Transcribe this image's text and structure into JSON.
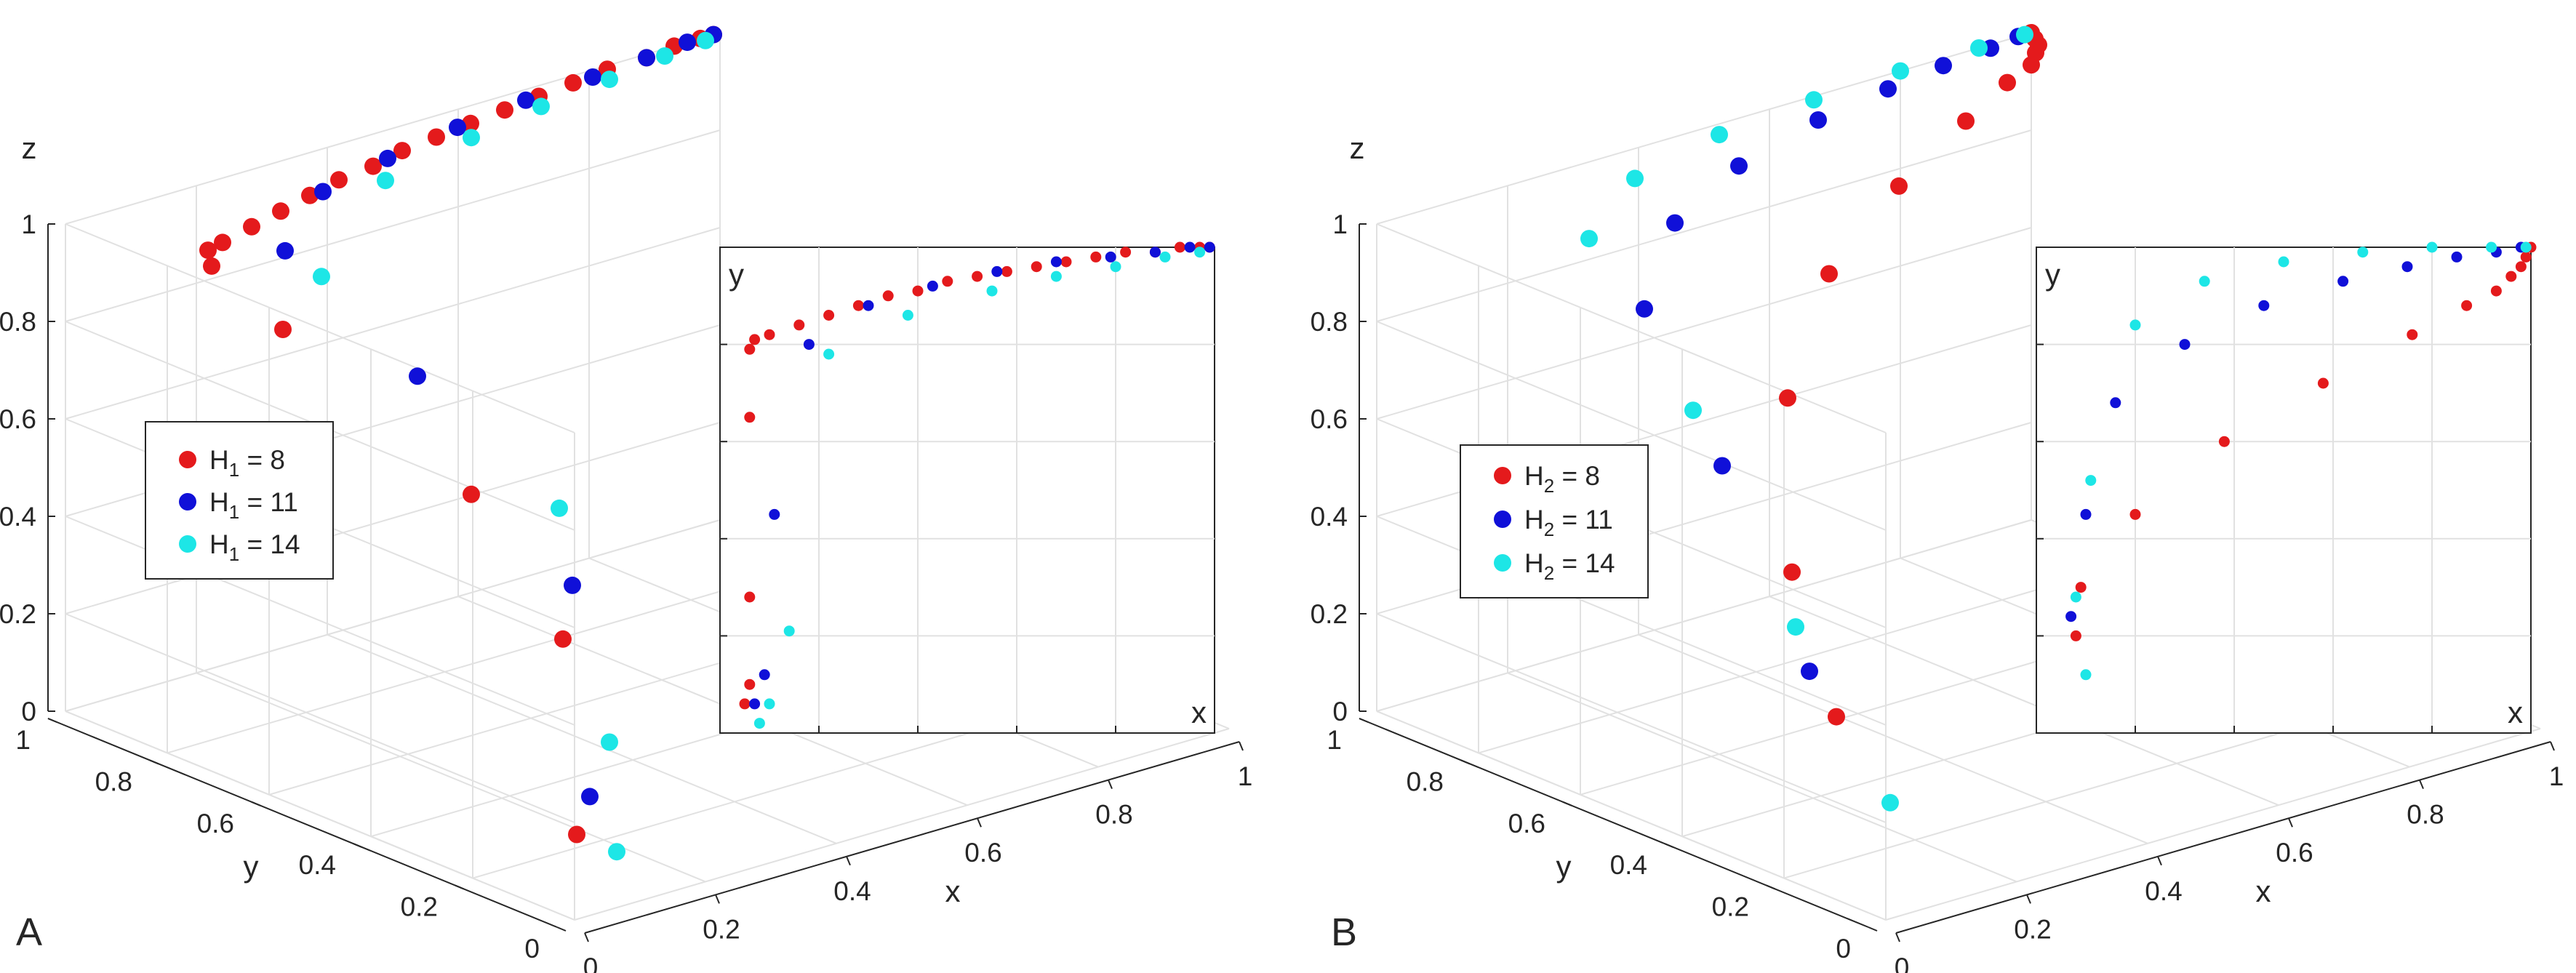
{
  "figure": {
    "colors": {
      "s1": "#e41a1c",
      "s2": "#1010d8",
      "s3": "#1de6e6",
      "grid": "#e1e1e1",
      "axis": "#262626"
    }
  },
  "chart_data": [
    {
      "type": "scatter",
      "panel_label": "A",
      "projection": "3d",
      "xlabel": "x",
      "ylabel": "y",
      "zlabel": "z",
      "xlim": [
        0,
        1
      ],
      "ylim": [
        0,
        1
      ],
      "zlim": [
        0,
        1
      ],
      "x_ticks": [
        "0",
        "0.2",
        "0.4",
        "0.6",
        "0.8",
        "1"
      ],
      "y_ticks": [
        "0",
        "0.2",
        "0.4",
        "0.6",
        "0.8",
        "1"
      ],
      "z_ticks": [
        "0",
        "0.2",
        "0.4",
        "0.6",
        "0.8",
        "1"
      ],
      "grid": true,
      "legend": {
        "position": "middle-left",
        "entries": [
          {
            "name": "H",
            "sub": "1",
            "value": "8"
          },
          {
            "name": "H",
            "sub": "1",
            "value": "11"
          },
          {
            "name": "H",
            "sub": "1",
            "value": "14"
          }
        ]
      },
      "series": [
        {
          "name": "H1 = 8",
          "color": "#e41a1c",
          "points": [
            [
              0.05,
              0.06,
              0.13
            ],
            [
              0.06,
              0.1,
              0.51
            ],
            [
              0.06,
              0.28,
              0.73
            ],
            [
              0.06,
              0.65,
              0.91
            ],
            [
              0.06,
              0.79,
              0.98
            ],
            [
              0.07,
              0.81,
              1
            ],
            [
              0.1,
              0.82,
              1
            ],
            [
              0.16,
              0.84,
              1
            ],
            [
              0.22,
              0.86,
              1
            ],
            [
              0.28,
              0.88,
              1
            ],
            [
              0.34,
              0.9,
              1
            ],
            [
              0.4,
              0.91,
              1
            ],
            [
              0.46,
              0.93,
              1
            ],
            [
              0.52,
              0.94,
              1
            ],
            [
              0.58,
              0.95,
              1
            ],
            [
              0.64,
              0.96,
              1
            ],
            [
              0.7,
              0.97,
              1
            ],
            [
              0.76,
              0.98,
              1
            ],
            [
              0.82,
              0.99,
              1
            ],
            [
              0.88,
              0.99,
              1
            ],
            [
              0.93,
              1,
              1
            ],
            [
              0.97,
              1,
              1
            ],
            [
              0.99,
              1,
              1
            ]
          ]
        },
        {
          "name": "H1 = 11",
          "color": "#1010d8",
          "points": [
            [
              0.07,
              0.06,
              0.2
            ],
            [
              0.09,
              0.12,
              0.6
            ],
            [
              0.11,
              0.45,
              0.88
            ],
            [
              0.18,
              0.8,
              0.96
            ],
            [
              0.3,
              0.88,
              1
            ],
            [
              0.43,
              0.92,
              1
            ],
            [
              0.56,
              0.95,
              1
            ],
            [
              0.68,
              0.97,
              1
            ],
            [
              0.79,
              0.98,
              1
            ],
            [
              0.88,
              0.99,
              1
            ],
            [
              0.95,
              1,
              1
            ],
            [
              0.99,
              1,
              1
            ]
          ]
        },
        {
          "name": "H1 = 14",
          "color": "#1de6e6",
          "points": [
            [
              0.08,
              0.02,
              0.1
            ],
            [
              0.1,
              0.06,
              0.3
            ],
            [
              0.14,
              0.21,
              0.7
            ],
            [
              0.22,
              0.78,
              0.9
            ],
            [
              0.38,
              0.86,
              1
            ],
            [
              0.55,
              0.91,
              1
            ],
            [
              0.68,
              0.94,
              1
            ],
            [
              0.8,
              0.96,
              1
            ],
            [
              0.9,
              0.98,
              1
            ],
            [
              0.97,
              0.99,
              1
            ]
          ]
        }
      ],
      "inset": {
        "xlabel": "x",
        "ylabel": "y",
        "view": "top-down (x-y)"
      }
    },
    {
      "type": "scatter",
      "panel_label": "B",
      "projection": "3d",
      "xlabel": "x",
      "ylabel": "y",
      "zlabel": "z",
      "xlim": [
        0,
        1
      ],
      "ylim": [
        0,
        1
      ],
      "zlim": [
        0,
        1
      ],
      "x_ticks": [
        "0",
        "0.2",
        "0.4",
        "0.6",
        "0.8",
        "1"
      ],
      "y_ticks": [
        "0",
        "0.2",
        "0.4",
        "0.6",
        "0.8",
        "1"
      ],
      "z_ticks": [
        "0",
        "0.2",
        "0.4",
        "0.6",
        "0.8",
        "1"
      ],
      "grid": true,
      "legend": {
        "position": "middle-left",
        "entries": [
          {
            "name": "H",
            "sub": "2",
            "value": "8"
          },
          {
            "name": "H",
            "sub": "2",
            "value": "11"
          },
          {
            "name": "H",
            "sub": "2",
            "value": "14"
          }
        ]
      },
      "series": [
        {
          "name": "H2 = 8",
          "color": "#e41a1c",
          "points": [
            [
              0.08,
              0.2,
              0.3
            ],
            [
              0.09,
              0.3,
              0.55
            ],
            [
              0.2,
              0.45,
              0.8
            ],
            [
              0.38,
              0.6,
              0.92
            ],
            [
              0.58,
              0.72,
              0.97
            ],
            [
              0.76,
              0.82,
              0.99
            ],
            [
              0.87,
              0.88,
              1
            ],
            [
              0.93,
              0.91,
              1
            ],
            [
              0.96,
              0.94,
              1
            ],
            [
              0.98,
              0.96,
              1
            ],
            [
              0.99,
              0.98,
              1
            ],
            [
              1,
              1,
              1
            ]
          ]
        },
        {
          "name": "H2 = 11",
          "color": "#1010d8",
          "points": [
            [
              0.07,
              0.24,
              0.38
            ],
            [
              0.1,
              0.45,
              0.7
            ],
            [
              0.16,
              0.68,
              0.9
            ],
            [
              0.3,
              0.8,
              0.97
            ],
            [
              0.46,
              0.88,
              0.99
            ],
            [
              0.62,
              0.93,
              1
            ],
            [
              0.75,
              0.96,
              1
            ],
            [
              0.85,
              0.98,
              1
            ],
            [
              0.93,
              0.99,
              1
            ],
            [
              0.98,
              1,
              1
            ]
          ]
        },
        {
          "name": "H2 = 14",
          "color": "#1de6e6",
          "points": [
            [
              0.1,
              0.12,
              0.15
            ],
            [
              0.08,
              0.28,
              0.45
            ],
            [
              0.11,
              0.52,
              0.78
            ],
            [
              0.2,
              0.84,
              0.96
            ],
            [
              0.34,
              0.93,
              0.99
            ],
            [
              0.5,
              0.97,
              1
            ],
            [
              0.66,
              0.99,
              1
            ],
            [
              0.8,
              1,
              1
            ],
            [
              0.92,
              1,
              1
            ],
            [
              0.99,
              1,
              1
            ]
          ]
        }
      ],
      "inset": {
        "xlabel": "x",
        "ylabel": "y",
        "view": "top-down (x-y)"
      }
    }
  ]
}
